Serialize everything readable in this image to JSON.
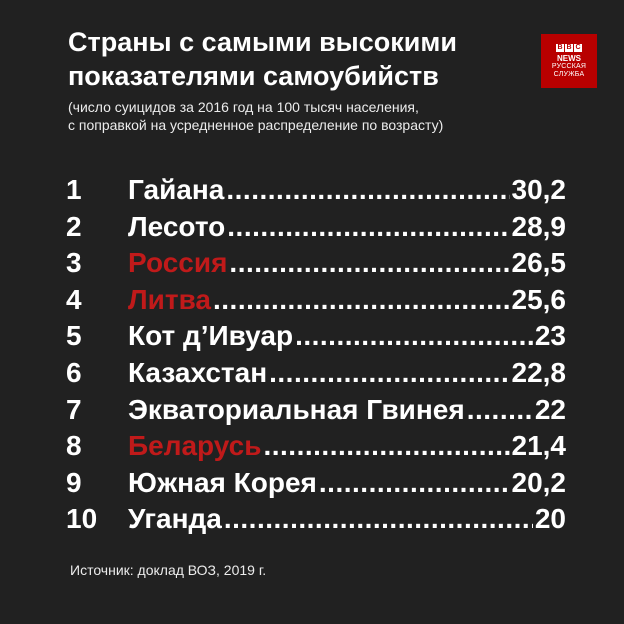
{
  "header": {
    "title_line1": "Страны с самыми высокими",
    "title_line2": "показателями самоубийств",
    "subtitle_line1": "(число суицидов за 2016 год на 100 тысяч населения,",
    "subtitle_line2": "с поправкой на усредненное распределение по возрасту)"
  },
  "logo": {
    "boxes": [
      "B",
      "B",
      "C"
    ],
    "line1": "NEWS",
    "line2": "РУССКАЯ",
    "line3": "СЛУЖБА"
  },
  "colors": {
    "background": "#212121",
    "text": "#ffffff",
    "highlight": "#c01a1a",
    "logo": "#b80000"
  },
  "chart_data": {
    "type": "table",
    "columns": [
      "rank",
      "country",
      "value"
    ],
    "rows": [
      {
        "rank": "1",
        "country": "Гайана",
        "value": "30,2",
        "highlight": false
      },
      {
        "rank": "2",
        "country": "Лесото",
        "value": "28,9",
        "highlight": false
      },
      {
        "rank": "3",
        "country": "Россия",
        "value": "26,5",
        "highlight": true
      },
      {
        "rank": "4",
        "country": "Литва",
        "value": "25,6",
        "highlight": true
      },
      {
        "rank": "5",
        "country": "Кот д’Ивуар",
        "value": "23",
        "highlight": false
      },
      {
        "rank": "6",
        "country": "Казахстан",
        "value": "22,8",
        "highlight": false
      },
      {
        "rank": "7",
        "country": "Экваториальная Гвинея",
        "value": "22",
        "highlight": false
      },
      {
        "rank": "8",
        "country": "Беларусь",
        "value": "21,4",
        "highlight": true
      },
      {
        "rank": "9",
        "country": "Южная Корея",
        "value": "20,2",
        "highlight": false
      },
      {
        "rank": "10",
        "country": "Уганда",
        "value": "20",
        "highlight": false
      }
    ]
  },
  "footer": {
    "source": "Источник: доклад ВОЗ, 2019 г."
  }
}
